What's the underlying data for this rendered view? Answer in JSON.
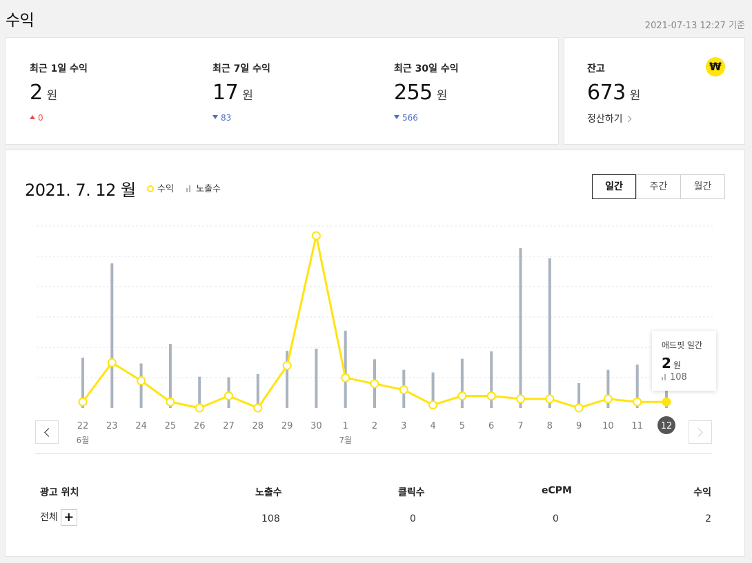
{
  "page": {
    "title": "수익",
    "timestamp": "2021-07-13 12:27 기준"
  },
  "summary": [
    {
      "label": "최근 1일 수익",
      "value": "2",
      "unit": "원",
      "delta": "0",
      "direction": "up"
    },
    {
      "label": "최근 7일 수익",
      "value": "17",
      "unit": "원",
      "delta": "83",
      "direction": "down"
    },
    {
      "label": "최근 30일 수익",
      "value": "255",
      "unit": "원",
      "delta": "566",
      "direction": "down"
    }
  ],
  "balance": {
    "label": "잔고",
    "value": "673",
    "unit": "원",
    "settle_label": "정산하기",
    "icon_glyph": "₩",
    "icon": "won-coin-icon",
    "accent_color": "#ffe40e"
  },
  "chart_header": {
    "date": "2021. 7. 12 월",
    "legend_revenue": "수익",
    "legend_impressions": "노출수",
    "tabs": [
      "일간",
      "주간",
      "월간"
    ],
    "active_tab": "일간"
  },
  "tooltip": {
    "title": "애드핏 일간",
    "value": "2",
    "unit": "원",
    "impressions": "108"
  },
  "chart_data": {
    "type": "line",
    "categories": [
      "22",
      "23",
      "24",
      "25",
      "26",
      "27",
      "28",
      "29",
      "30",
      "1",
      "2",
      "3",
      "4",
      "5",
      "6",
      "7",
      "8",
      "9",
      "10",
      "11",
      "12"
    ],
    "month_labels": [
      {
        "index": 0,
        "label": "6월"
      },
      {
        "index": 9,
        "label": "7월"
      }
    ],
    "selected_index": 20,
    "series": [
      {
        "name": "수익",
        "color": "#ffe40e",
        "values": [
          2,
          15,
          9,
          2,
          0,
          4,
          0,
          14,
          57,
          10,
          8,
          6,
          1,
          4,
          4,
          3,
          3,
          0,
          3,
          2,
          2
        ]
      },
      {
        "name": "노출수",
        "color": "#aab4bf",
        "values": [
          95,
          273,
          84,
          121,
          59,
          58,
          64,
          108,
          112,
          146,
          92,
          72,
          67,
          93,
          107,
          302,
          283,
          47,
          72,
          82,
          108
        ]
      }
    ],
    "grid": true
  },
  "table": {
    "headers": [
      "광고 위치",
      "노출수",
      "클릭수",
      "eCPM",
      "수익"
    ],
    "row": {
      "placement": "전체",
      "impressions": "108",
      "clicks": "0",
      "ecpm": "0",
      "revenue": "2"
    },
    "add_glyph": "+"
  }
}
